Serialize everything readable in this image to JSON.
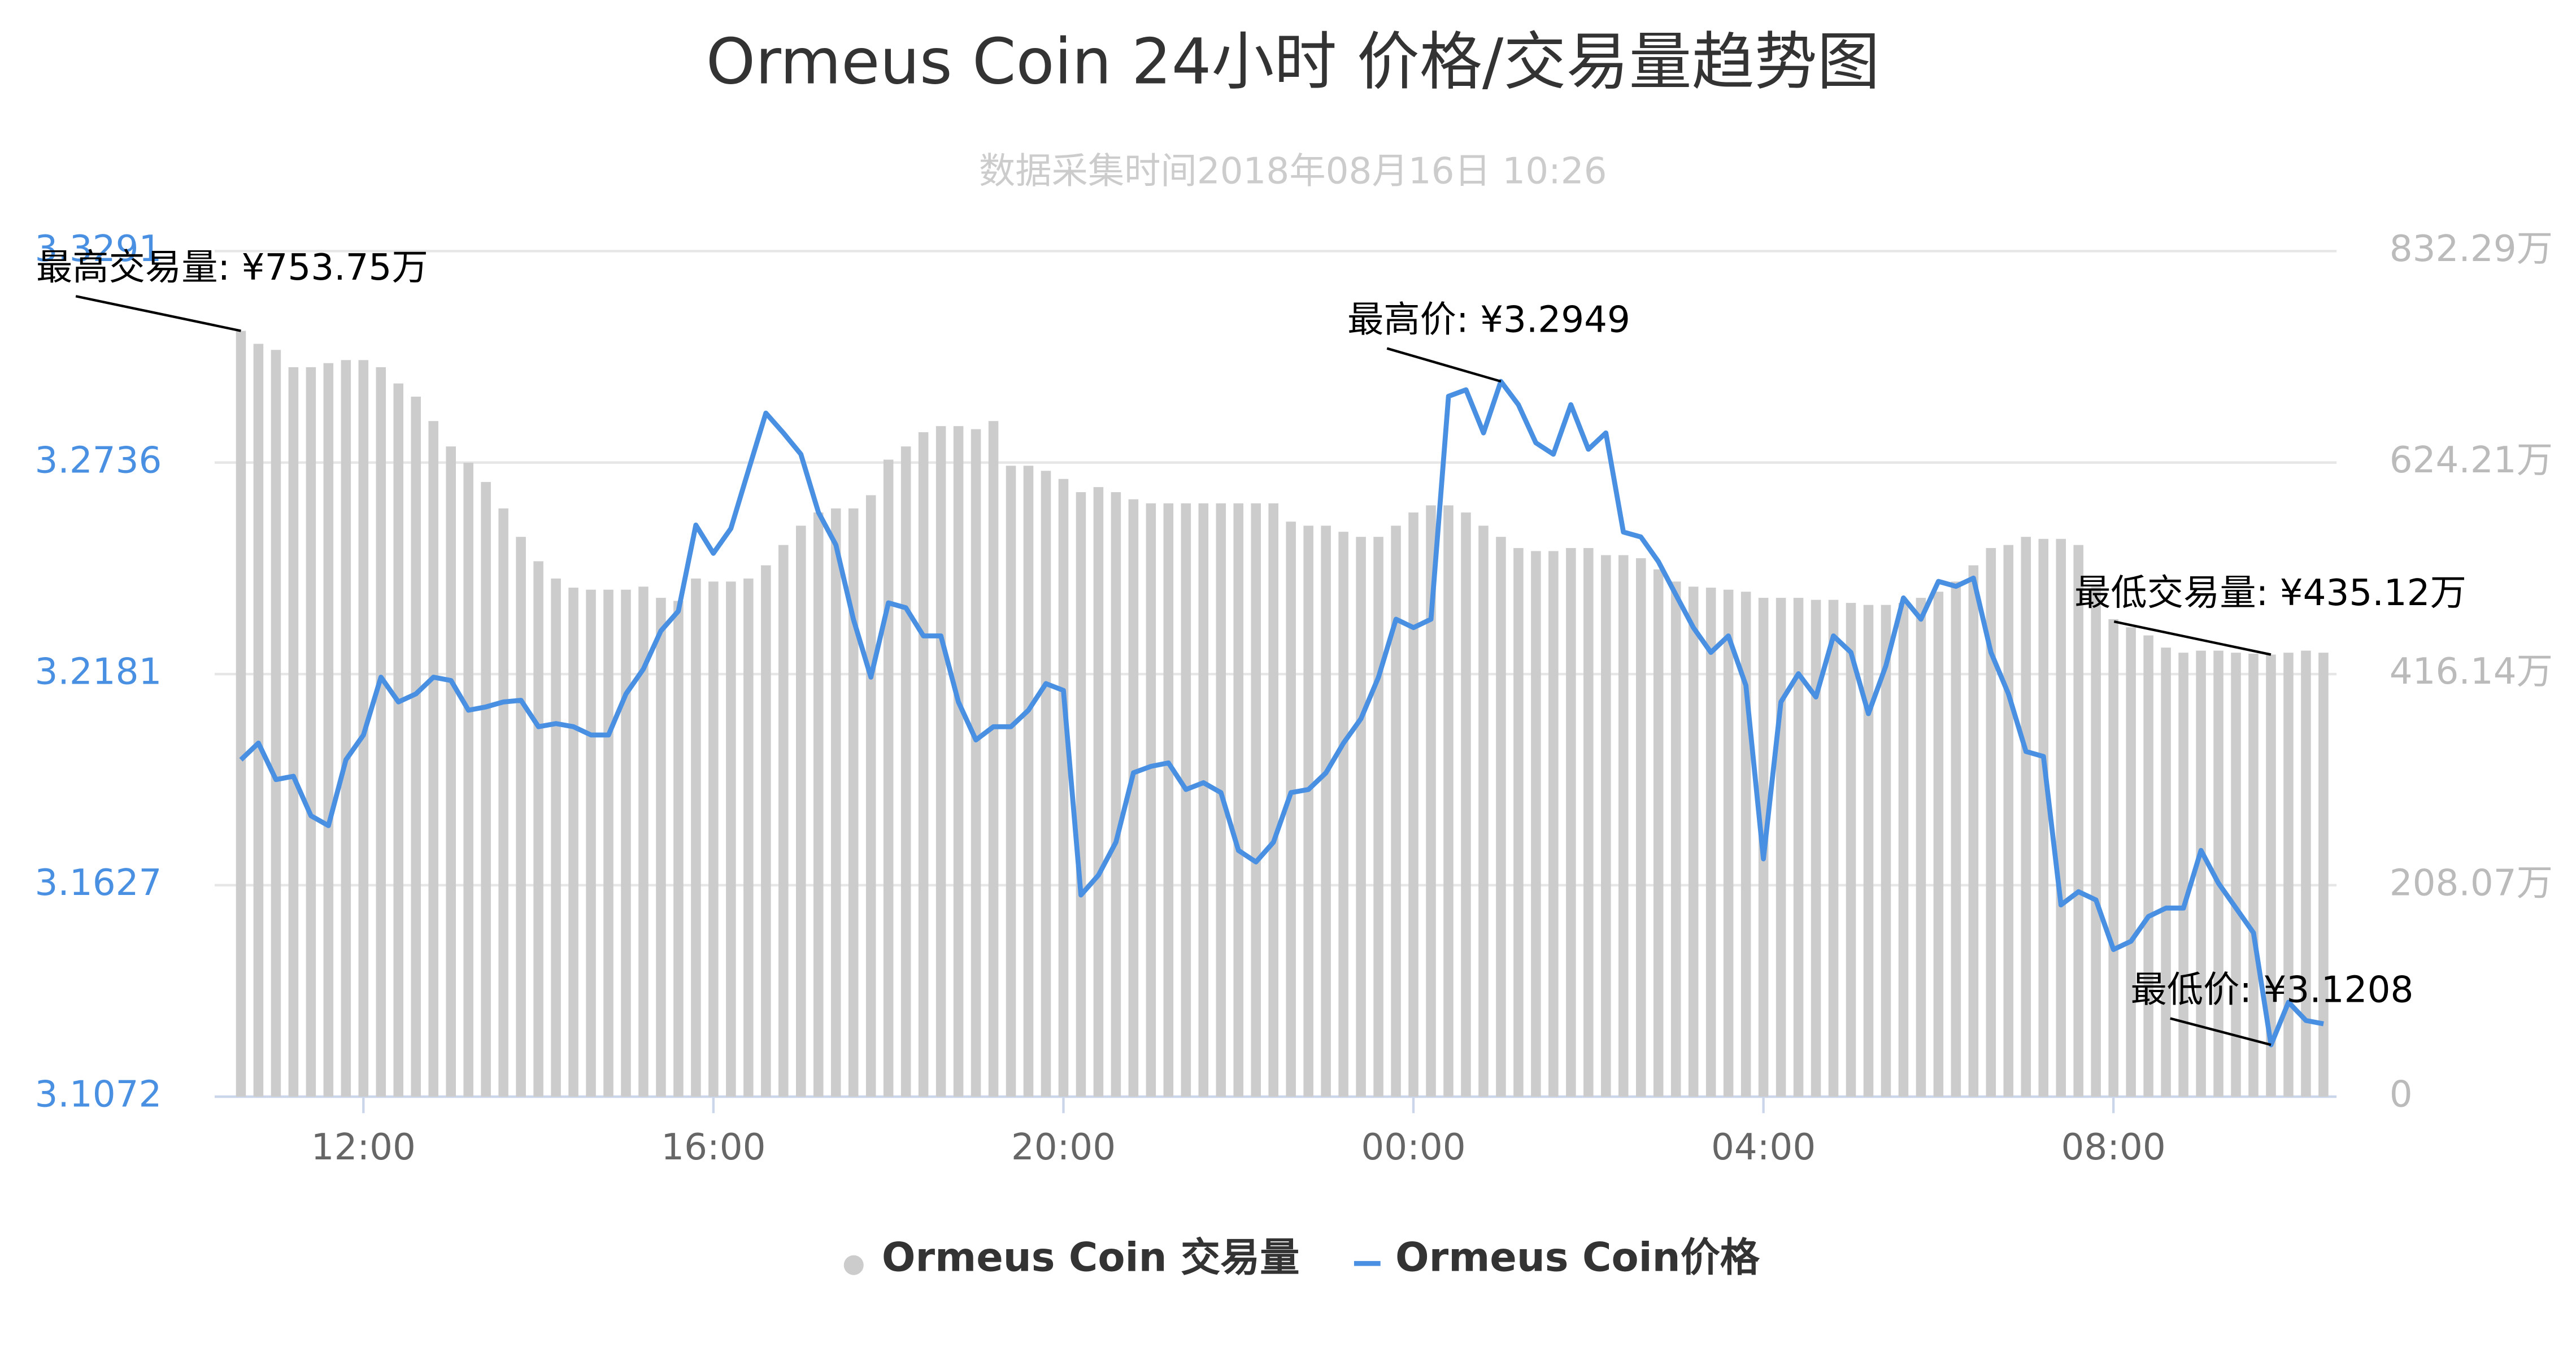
{
  "chart_data": {
    "type": "bar",
    "title": "Ormeus Coin 24小时 价格/交易量趋势图",
    "subtitle": "数据采集时间2018年08月16日 10:26",
    "x": [
      10.6,
      10.8,
      11.0,
      11.2,
      11.4,
      11.6,
      11.8,
      12.0,
      12.2,
      12.4,
      12.6,
      12.8,
      13.0,
      13.2,
      13.4,
      13.6,
      13.8,
      14.0,
      14.2,
      14.4,
      14.6,
      14.8,
      15.0,
      15.2,
      15.4,
      15.6,
      15.8,
      16.0,
      16.2,
      16.4,
      16.6,
      16.8,
      17.0,
      17.2,
      17.4,
      17.6,
      17.8,
      18.0,
      18.2,
      18.4,
      18.6,
      18.8,
      19.0,
      19.2,
      19.4,
      19.6,
      19.8,
      20.0,
      20.2,
      20.4,
      20.6,
      20.8,
      21.0,
      21.2,
      21.4,
      21.6,
      21.8,
      22.0,
      22.2,
      22.4,
      22.6,
      22.8,
      23.0,
      23.2,
      23.4,
      23.6,
      23.8,
      24.0,
      24.2,
      24.4,
      24.6,
      24.8,
      25.0,
      25.2,
      25.4,
      25.6,
      25.8,
      26.0,
      26.2,
      26.4,
      26.6,
      26.8,
      27.0,
      27.2,
      27.4,
      27.6,
      27.8,
      28.0,
      28.2,
      28.4,
      28.6,
      28.8,
      29.0,
      29.2,
      29.4,
      29.6,
      29.8,
      30.0,
      30.2,
      30.4,
      30.6,
      30.8,
      31.0,
      31.2,
      31.4,
      31.6,
      31.8,
      32.0,
      32.2,
      32.4,
      32.6,
      32.8,
      33.0,
      33.2,
      33.4,
      33.6,
      33.8,
      34.0,
      34.2,
      34.4
    ],
    "xlim": [
      10.3,
      34.55
    ],
    "xticks": [
      {
        "value": 12,
        "label": "12:00"
      },
      {
        "value": 16,
        "label": "16:00"
      },
      {
        "value": 20,
        "label": "20:00"
      },
      {
        "value": 24,
        "label": "00:00"
      },
      {
        "value": 28,
        "label": "04:00"
      },
      {
        "value": 32,
        "label": "08:00"
      }
    ],
    "ylim": [
      3.1072,
      3.3291
    ],
    "yticks": [
      3.1072,
      3.1627,
      3.2181,
      3.2736,
      3.3291
    ],
    "y2lim": [
      0,
      832.29
    ],
    "y2ticks": [
      0,
      {
        "value": 208.07,
        "label": "208.07万"
      },
      {
        "value": 416.14,
        "label": "416.14万"
      },
      {
        "value": 624.21,
        "label": "624.21万"
      },
      {
        "value": 832.29,
        "label": "832.29万"
      }
    ],
    "grid": true,
    "legend": "bottom",
    "series": [
      {
        "name": "Ormeus Coin 交易量",
        "type": "bar",
        "axis": "y2",
        "color": "#cccccc",
        "values": [
          753.75,
          741,
          735,
          718,
          718,
          722,
          725,
          725,
          718,
          702,
          689,
          665,
          640,
          624,
          605,
          579,
          551,
          527,
          510,
          501,
          499,
          499,
          499,
          502,
          491,
          488,
          510,
          507,
          507,
          510,
          523,
          543,
          562,
          575,
          579,
          579,
          592,
          627,
          640,
          654,
          660,
          660,
          657,
          665,
          621,
          621,
          616,
          608,
          595,
          600,
          595,
          588,
          584,
          584,
          584,
          584,
          584,
          584,
          584,
          584,
          566,
          562,
          562,
          556,
          551,
          551,
          562,
          575,
          582,
          582,
          575,
          562,
          551,
          540,
          537,
          537,
          540,
          540,
          533,
          533,
          530,
          519,
          507,
          502,
          501,
          499,
          497,
          491,
          491,
          491,
          489,
          489,
          486,
          484,
          484,
          486,
          491,
          497,
          507,
          523,
          540,
          543,
          551,
          549,
          549,
          543,
          502,
          470,
          462,
          454,
          442,
          437,
          439,
          439,
          437,
          436,
          435.12,
          437,
          439,
          437
        ]
      },
      {
        "name": "Ormeus Coin价格",
        "type": "line",
        "axis": "y",
        "color": "#4a90e2",
        "values": [
          3.1956,
          3.2,
          3.1904,
          3.1913,
          3.1809,
          3.1783,
          3.1956,
          3.2021,
          3.2173,
          3.2108,
          3.2129,
          3.2173,
          3.2164,
          3.2086,
          3.2095,
          3.2108,
          3.2112,
          3.2043,
          3.2051,
          3.2043,
          3.2021,
          3.2021,
          3.2129,
          3.2194,
          3.2294,
          3.2346,
          3.2572,
          3.2498,
          3.2563,
          3.2715,
          3.2866,
          3.2814,
          3.2758,
          3.2606,
          3.252,
          3.2325,
          3.2173,
          3.2368,
          3.2355,
          3.2281,
          3.2281,
          3.2108,
          3.2008,
          3.2043,
          3.2043,
          3.2086,
          3.2156,
          3.2138,
          3.1601,
          3.1653,
          3.174,
          3.1922,
          3.1939,
          3.1948,
          3.1878,
          3.1896,
          3.187,
          3.1718,
          3.1688,
          3.174,
          3.187,
          3.1878,
          3.1922,
          3.2,
          3.2064,
          3.2173,
          3.2325,
          3.2303,
          3.2325,
          3.291,
          3.2927,
          3.2814,
          3.2949,
          3.2888,
          3.2788,
          3.2758,
          3.2888,
          3.2771,
          3.2814,
          3.2554,
          3.2541,
          3.2476,
          3.2389,
          3.2303,
          3.2238,
          3.2281,
          3.2151,
          3.1696,
          3.2108,
          3.2182,
          3.2121,
          3.2281,
          3.2238,
          3.2077,
          3.2203,
          3.2381,
          3.2325,
          3.2424,
          3.2411,
          3.2433,
          3.2238,
          3.2129,
          3.1978,
          3.1965,
          3.1575,
          3.161,
          3.1588,
          3.1458,
          3.148,
          3.1545,
          3.1567,
          3.1567,
          3.1718,
          3.1632,
          3.1567,
          3.1502,
          3.1208,
          3.132,
          3.1272,
          3.1263
        ]
      }
    ],
    "annotations": [
      {
        "text": "最高交易量: ¥753.75万",
        "x": 10.6,
        "value": 753.75,
        "axis": "y2"
      },
      {
        "text": "最高价: ¥3.2949",
        "x": 25.0,
        "value": 3.2949,
        "axis": "y"
      },
      {
        "text": "最低交易量: ¥435.12万",
        "x": 33.8,
        "value": 435.12,
        "axis": "y2"
      },
      {
        "text": "最低价: ¥3.1208",
        "x": 33.8,
        "value": 3.1208,
        "axis": "y"
      }
    ]
  }
}
